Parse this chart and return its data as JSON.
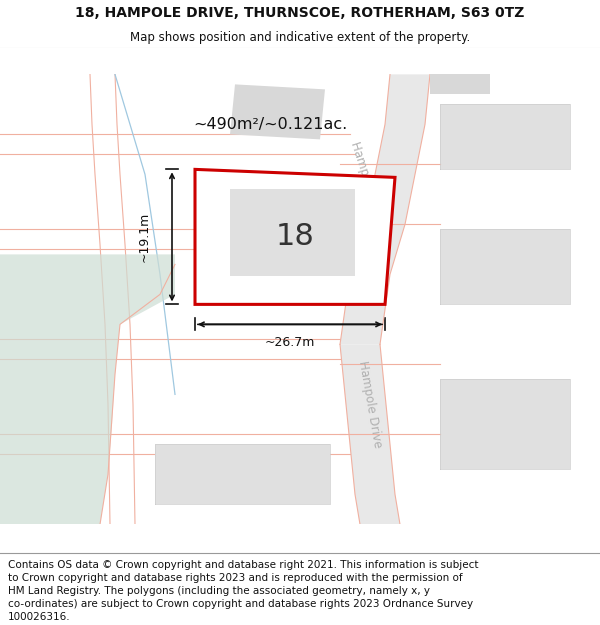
{
  "title_line1": "18, HAMPOLE DRIVE, THURNSCOE, ROTHERHAM, S63 0TZ",
  "title_line2": "Map shows position and indicative extent of the property.",
  "footer_lines": [
    "Contains OS data © Crown copyright and database right 2021. This information is subject",
    "to Crown copyright and database rights 2023 and is reproduced with the permission of",
    "HM Land Registry. The polygons (including the associated geometry, namely x, y",
    "co-ordinates) are subject to Crown copyright and database rights 2023 Ordnance Survey",
    "100026316."
  ],
  "map_bg": "#ffffff",
  "road_fill": "#e8e8e8",
  "road_line": "#f0b0a0",
  "road_line2": "#e8a090",
  "green_color": "#cdddd4",
  "grey_block": "#d8d8d8",
  "grey_block2": "#e0e0e0",
  "plot_edge": "#cc0000",
  "plot_fill": "#ffffff",
  "building_fill": "#e0e0e0",
  "blue_line": "#a0c8e0",
  "dim_color": "#111111",
  "plot_label": "18",
  "area_text": "~490m²/~0.121ac.",
  "dim_width": "~26.7m",
  "dim_height": "~19.1m",
  "road_label": "Hampole Drive",
  "road_label_color": "#b0b0b0",
  "title_fontsize": 10,
  "footer_fontsize": 7.5
}
